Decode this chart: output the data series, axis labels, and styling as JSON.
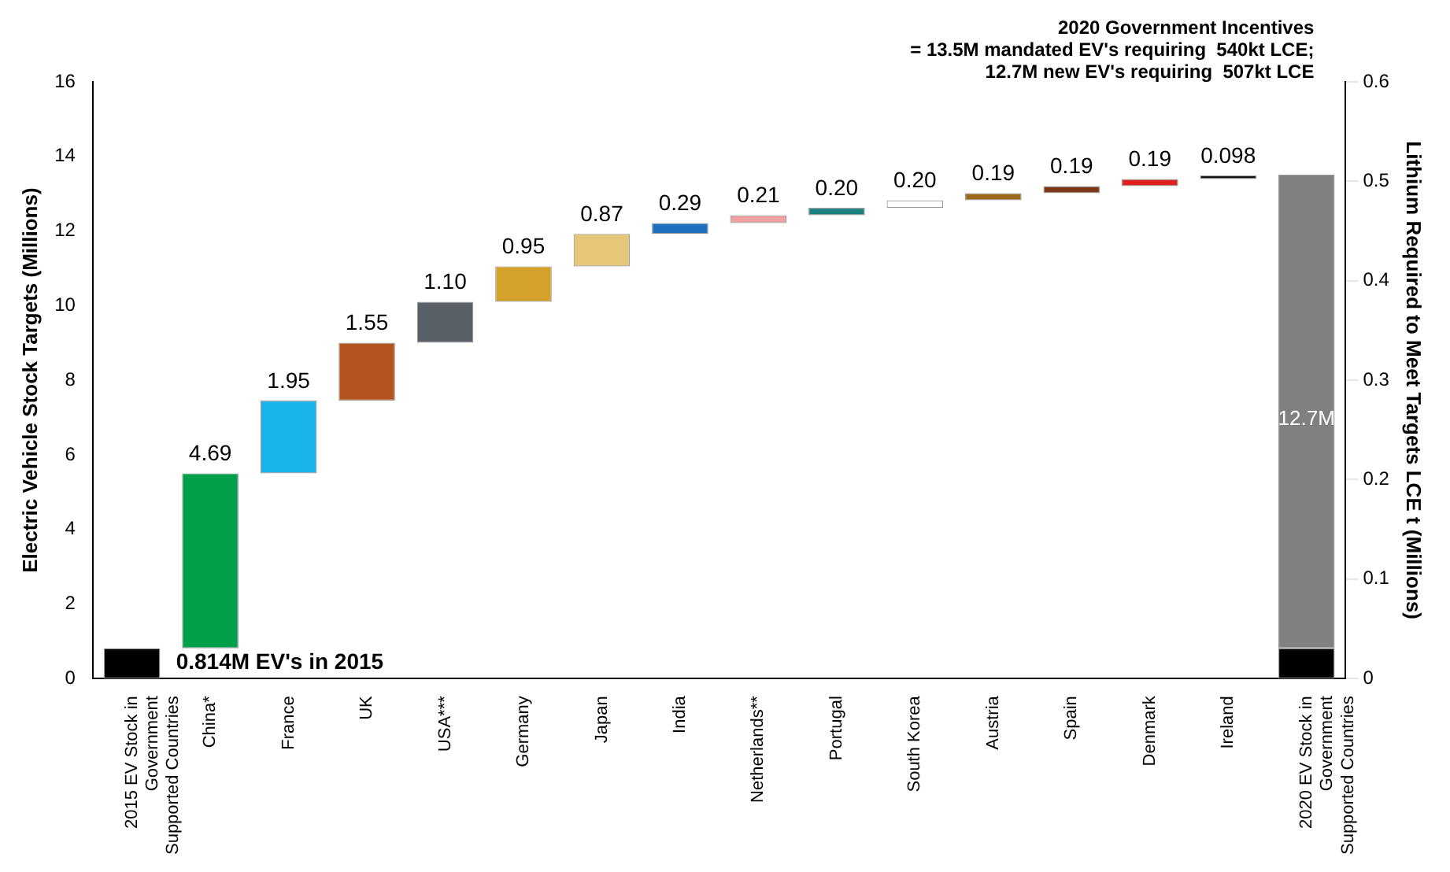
{
  "chart_data": {
    "type": "bar",
    "categories": [
      "2015 EV Stock in Government Supported Countries",
      "China*",
      "France",
      "UK",
      "USA***",
      "Germany",
      "Japan",
      "India",
      "Netherlands**",
      "Portugal",
      "South Korea",
      "Austria",
      "Spain",
      "Denmark",
      "Ireland",
      "2020 EV Stock in Government Supported Countries"
    ],
    "ylabel": "Electric Vehicle Stock Targets (Millions)",
    "y2label": "Lithium Required to Meet Targets LCE t (Millions)",
    "ylim": [
      0,
      16
    ],
    "yticks": [
      0,
      2,
      4,
      6,
      8,
      10,
      12,
      14,
      16
    ],
    "y2lim": [
      0,
      0.6
    ],
    "y2ticks": [
      0,
      0.1,
      0.2,
      0.3,
      0.4,
      0.5,
      0.6
    ],
    "series": [
      {
        "colors": [
          "#000000",
          "#00a04b",
          "#1ab4ec",
          "#b5531f",
          "#5a6068",
          "#d4a22a",
          "#e6c77a",
          "#1f6fbf",
          "#f0a0a0",
          "#1c7f7f",
          "#ffffff",
          "#9a6a1a",
          "#7a3a1a",
          "#e02020",
          "#111111",
          "#000000"
        ],
        "values": [
          0.814,
          4.69,
          1.95,
          1.55,
          1.1,
          0.95,
          0.87,
          0.29,
          0.21,
          0.2,
          0.2,
          0.19,
          0.19,
          0.19,
          0.098,
          0.814
        ],
        "base": [
          0,
          0.814,
          5.504,
          7.454,
          9.004,
          10.104,
          11.054,
          11.924,
          12.214,
          12.424,
          12.624,
          12.824,
          13.014,
          13.204,
          13.394,
          0
        ],
        "value_labels": [
          null,
          "4.69",
          "1.95",
          "1.55",
          "1.10",
          "0.95",
          "0.87",
          "0.29",
          "0.21",
          "0.20",
          "0.20",
          "0.19",
          "0.19",
          "0.19",
          "0.098",
          null
        ]
      },
      {
        "color": "#808080",
        "values": [
          null,
          null,
          null,
          null,
          null,
          null,
          null,
          null,
          null,
          null,
          null,
          null,
          null,
          null,
          null,
          12.7
        ],
        "base": [
          null,
          null,
          null,
          null,
          null,
          null,
          null,
          null,
          null,
          null,
          null,
          null,
          null,
          null,
          null,
          0.814
        ],
        "value_labels": [
          null,
          null,
          null,
          null,
          null,
          null,
          null,
          null,
          null,
          null,
          null,
          null,
          null,
          null,
          null,
          "12.7M"
        ]
      }
    ],
    "annotations": [
      "0.814M EV's in 2015",
      "2020 Government Incentives\n= 13.5M mandated EV's requiring  540kt LCE;\n12.7M new EV's requiring  507kt LCE"
    ],
    "grid": false,
    "legend": false
  }
}
